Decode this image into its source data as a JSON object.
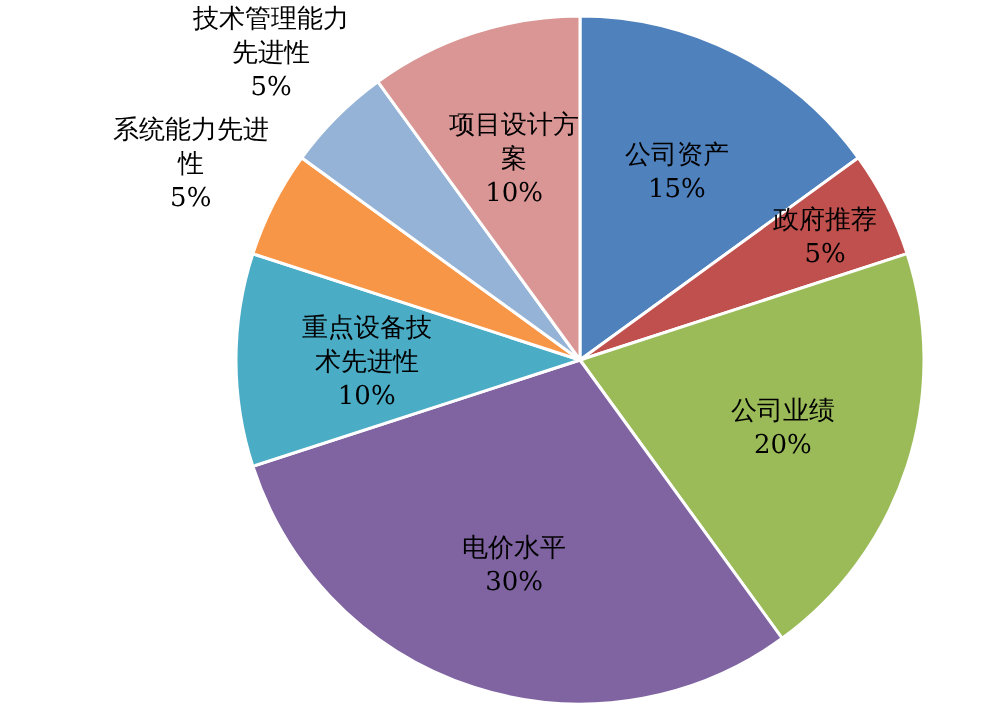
{
  "chart_data": {
    "type": "pie",
    "categories": [
      "公司资产",
      "政府推荐",
      "公司业绩",
      "电价水平",
      "重点设备技术先进性",
      "系统能力先进性",
      "技术管理能力先进性",
      "项目设计方案"
    ],
    "values": [
      15,
      5,
      20,
      30,
      10,
      5,
      5,
      10
    ],
    "colors": [
      "#4f81bd",
      "#c0504d",
      "#9bbb59",
      "#8064a2",
      "#4bacc6",
      "#f79646",
      "#95b3d7",
      "#d99694"
    ],
    "value_labels": [
      "15%",
      "5%",
      "20%",
      "30%",
      "10%",
      "5%",
      "5%",
      "10%"
    ]
  }
}
